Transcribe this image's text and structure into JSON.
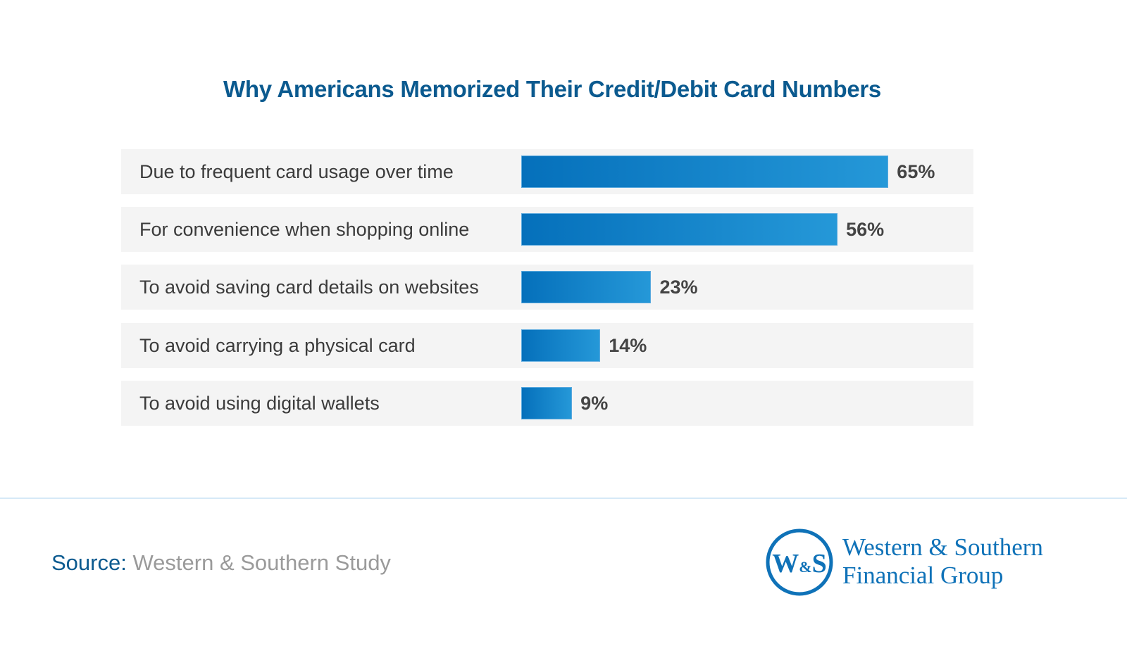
{
  "chart_data": {
    "type": "bar",
    "orientation": "horizontal",
    "title": "Why Americans Memorized Their Credit/Debit Card Numbers",
    "categories": [
      "Due to frequent card usage over time",
      "For convenience when shopping online",
      "To avoid saving card details on websites",
      "To avoid carrying a physical card",
      "To avoid using digital wallets"
    ],
    "values": [
      65,
      56,
      23,
      14,
      9
    ],
    "value_labels": [
      "65%",
      "56%",
      "23%",
      "14%",
      "9%"
    ],
    "unit": "%",
    "grid": false,
    "bar_gradient": [
      "#0570bb",
      "#2598d8"
    ]
  },
  "footer": {
    "source_key": "Source:",
    "source_value": "Western & Southern Study"
  },
  "logo": {
    "monogram": "W&S",
    "line1": "Western & Southern",
    "line2": "Financial Group",
    "color": "#0f72b8"
  }
}
